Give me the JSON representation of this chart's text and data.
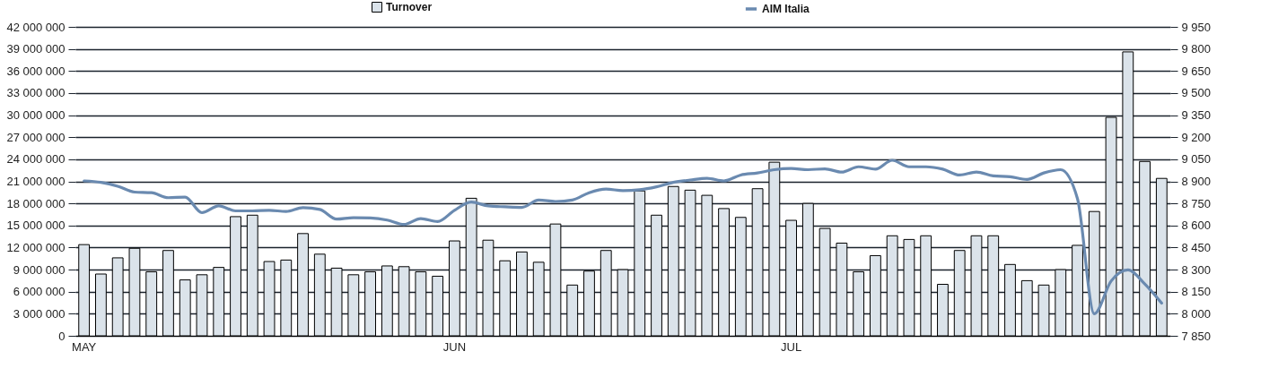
{
  "chart_data": {
    "type": "bar",
    "categories": [
      "MAY",
      null,
      null,
      null,
      null,
      null,
      null,
      null,
      null,
      null,
      null,
      null,
      null,
      null,
      null,
      null,
      null,
      null,
      null,
      null,
      null,
      null,
      "JUN",
      null,
      null,
      null,
      null,
      null,
      null,
      null,
      null,
      null,
      null,
      null,
      null,
      null,
      null,
      null,
      null,
      null,
      null,
      null,
      "JUL",
      null,
      null,
      null,
      null,
      null,
      null,
      null,
      null,
      null,
      null,
      null,
      null,
      null,
      null,
      null,
      null,
      null,
      null,
      null,
      null,
      null,
      null
    ],
    "series": [
      {
        "name": "Turnover",
        "color": "#dbe3ea",
        "values": [
          12400000,
          8400000,
          10600000,
          11900000,
          8700000,
          11600000,
          7600000,
          8300000,
          9300000,
          16200000,
          16400000,
          10100000,
          10300000,
          13900000,
          11100000,
          9200000,
          8300000,
          8700000,
          9500000,
          9400000,
          8700000,
          8100000,
          12900000,
          18700000,
          13000000,
          10200000,
          11400000,
          10000000,
          15200000,
          6900000,
          8800000,
          11600000,
          9000000,
          19700000,
          16400000,
          20300000,
          19800000,
          19100000,
          17300000,
          16100000,
          20000000,
          23600000,
          15700000,
          18000000,
          14600000,
          12600000,
          8700000,
          10900000,
          13600000,
          13100000,
          13600000,
          7000000,
          11600000,
          13600000,
          13600000,
          9700000,
          7500000,
          6900000,
          9000000,
          12300000,
          16900000,
          29700000,
          38600000,
          23700000,
          21400000
        ]
      },
      {
        "name": "AIM Italia",
        "type": "line",
        "axis": "y2",
        "color": "#6a8ab0",
        "values": [
          8903,
          8893,
          8867,
          8827,
          8823,
          8789,
          8793,
          8687,
          8733,
          8699,
          8699,
          8703,
          8695,
          8721,
          8709,
          8643,
          8653,
          8651,
          8637,
          8607,
          8647,
          8627,
          8703,
          8759,
          8733,
          8727,
          8723,
          8773,
          8763,
          8773,
          8823,
          8847,
          8837,
          8843,
          8863,
          8893,
          8909,
          8921,
          8903,
          8943,
          8957,
          8979,
          8987,
          8979,
          8985,
          8963,
          8999,
          8983,
          9043,
          8999,
          8999,
          8983,
          8943,
          8963,
          8937,
          8931,
          8913,
          8957,
          8979,
          8783,
          8000,
          8222,
          8298,
          8202,
          8072
        ]
      }
    ],
    "ylim": [
      0,
      42000000
    ],
    "yticks": [
      0,
      {
        "value": 3000000,
        "label": "3 000 000"
      },
      {
        "value": 6000000,
        "label": "6 000 000"
      },
      {
        "value": 9000000,
        "label": "9 000 000"
      },
      {
        "value": 12000000,
        "label": "12 000 000"
      },
      {
        "value": 15000000,
        "label": "15 000 000"
      },
      {
        "value": 18000000,
        "label": "18 000 000"
      },
      {
        "value": 21000000,
        "label": "21 000 000"
      },
      {
        "value": 24000000,
        "label": "24 000 000"
      },
      {
        "value": 27000000,
        "label": "27 000 000"
      },
      {
        "value": 30000000,
        "label": "30 000 000"
      },
      {
        "value": 33000000,
        "label": "33 000 000"
      },
      {
        "value": 36000000,
        "label": "36 000 000"
      },
      {
        "value": 39000000,
        "label": "39 000 000"
      },
      {
        "value": 42000000,
        "label": "42 000 000"
      }
    ],
    "y2lim": [
      7850,
      9950
    ],
    "y2ticks": [
      {
        "value": 7850,
        "label": "7 850"
      },
      {
        "value": 8000,
        "label": "8 000"
      },
      {
        "value": 8150,
        "label": "8 150"
      },
      {
        "value": 8300,
        "label": "8 300"
      },
      {
        "value": 8450,
        "label": "8 450"
      },
      {
        "value": 8600,
        "label": "8 600"
      },
      {
        "value": 8750,
        "label": "8 750"
      },
      {
        "value": 8900,
        "label": "8 900"
      },
      {
        "value": 9050,
        "label": "9 050"
      },
      {
        "value": 9200,
        "label": "9 200"
      },
      {
        "value": 9350,
        "label": "9 350"
      },
      {
        "value": 9500,
        "label": "9 500"
      },
      {
        "value": 9650,
        "label": "9 650"
      },
      {
        "value": 9800,
        "label": "9 800"
      },
      {
        "value": 9950,
        "label": "9 950"
      }
    ],
    "grid": "y",
    "legend": "top"
  }
}
